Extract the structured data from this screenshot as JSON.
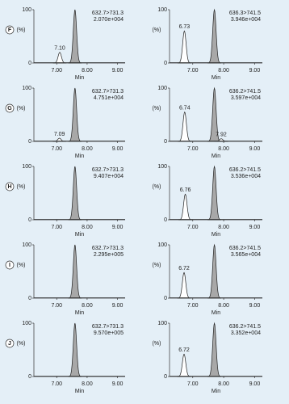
{
  "chart_data": [
    {
      "type": "chromatogram",
      "panel": "F",
      "trace": "632.7>731.3",
      "intensity": "2.070e+004",
      "xlabel": "Min",
      "ylabel": "(%)",
      "xlim": [
        6.25,
        9.25
      ],
      "ylim": [
        0,
        100
      ],
      "xticks": [
        {
          "value": 7,
          "label": "7.00"
        },
        {
          "value": 8,
          "label": "8.00"
        },
        {
          "value": 9,
          "label": "9.00"
        }
      ],
      "yticks": [
        0,
        100
      ],
      "peaks": {
        "x": [
          7.1,
          7.6
        ],
        "values": [
          20,
          100
        ],
        "labels": [
          "7.10",
          null
        ],
        "colors": [
          "#ffffff",
          "#a8a8a8"
        ]
      }
    },
    {
      "type": "chromatogram",
      "trace": "636.3>741.5",
      "intensity": "3.946e+004",
      "xlabel": "Min",
      "ylabel": "(%)",
      "xlim": [
        6.25,
        9.25
      ],
      "ylim": [
        0,
        100
      ],
      "xticks": [
        {
          "value": 7,
          "label": "7.00"
        },
        {
          "value": 8,
          "label": "8.00"
        },
        {
          "value": 9,
          "label": "9.00"
        }
      ],
      "yticks": [
        0,
        100
      ],
      "peaks": {
        "x": [
          6.73,
          7.7
        ],
        "values": [
          60,
          100
        ],
        "labels": [
          "6.73",
          null
        ],
        "colors": [
          "#ffffff",
          "#a8a8a8"
        ]
      }
    },
    {
      "type": "chromatogram",
      "panel": "G",
      "trace": "632.7>731.3",
      "intensity": "4.751e+004",
      "xlabel": "Min",
      "ylabel": "(%)",
      "xlim": [
        6.25,
        9.25
      ],
      "ylim": [
        0,
        100
      ],
      "xticks": [
        {
          "value": 7,
          "label": "7.00"
        },
        {
          "value": 8,
          "label": "8.00"
        },
        {
          "value": 9,
          "label": "9.00"
        }
      ],
      "yticks": [
        0,
        100
      ],
      "peaks": {
        "x": [
          7.09,
          7.6
        ],
        "values": [
          6,
          100
        ],
        "labels": [
          "7.09",
          null
        ],
        "colors": [
          "#ffffff",
          "#a8a8a8"
        ]
      }
    },
    {
      "type": "chromatogram",
      "trace": "636.2>741.5",
      "intensity": "3.597e+004",
      "xlabel": "Min",
      "ylabel": "(%)",
      "xlim": [
        6.25,
        9.25
      ],
      "ylim": [
        0,
        100
      ],
      "xticks": [
        {
          "value": 7,
          "label": "7.00"
        },
        {
          "value": 8,
          "label": "8.00"
        },
        {
          "value": 9,
          "label": "9.00"
        }
      ],
      "yticks": [
        0,
        100
      ],
      "peaks": {
        "x": [
          6.74,
          7.7,
          7.92
        ],
        "values": [
          55,
          100,
          5
        ],
        "labels": [
          "6.74",
          null,
          "7.92"
        ],
        "colors": [
          "#ffffff",
          "#a8a8a8",
          "#ffffff"
        ]
      }
    },
    {
      "type": "chromatogram",
      "panel": "H",
      "trace": "632.7>731.3",
      "intensity": "9.407e+004",
      "xlabel": "Min",
      "ylabel": "(%)",
      "xlim": [
        6.25,
        9.25
      ],
      "ylim": [
        0,
        100
      ],
      "xticks": [
        {
          "value": 7,
          "label": "7.00"
        },
        {
          "value": 8,
          "label": "8.00"
        },
        {
          "value": 9,
          "label": "9.00"
        }
      ],
      "yticks": [
        0,
        100
      ],
      "peaks": {
        "x": [
          7.6
        ],
        "values": [
          100
        ],
        "labels": [
          null
        ],
        "colors": [
          "#a8a8a8"
        ]
      }
    },
    {
      "type": "chromatogram",
      "trace": "636.2>741.5",
      "intensity": "3.536e+004",
      "xlabel": "Min",
      "ylabel": "(%)",
      "xlim": [
        6.25,
        9.25
      ],
      "ylim": [
        0,
        100
      ],
      "xticks": [
        {
          "value": 7,
          "label": "7.00"
        },
        {
          "value": 8,
          "label": "8.00"
        },
        {
          "value": 9,
          "label": "9.00"
        }
      ],
      "yticks": [
        0,
        100
      ],
      "peaks": {
        "x": [
          6.76,
          7.7
        ],
        "values": [
          48,
          100
        ],
        "labels": [
          "6.76",
          null
        ],
        "colors": [
          "#ffffff",
          "#a8a8a8"
        ]
      }
    },
    {
      "type": "chromatogram",
      "panel": "I",
      "trace": "632.7>731.3",
      "intensity": "2.295e+005",
      "xlabel": "Min",
      "ylabel": "(%)",
      "xlim": [
        6.25,
        9.25
      ],
      "ylim": [
        0,
        100
      ],
      "xticks": [
        {
          "value": 7,
          "label": "7.00"
        },
        {
          "value": 8,
          "label": "8.00"
        },
        {
          "value": 9,
          "label": "9.00"
        }
      ],
      "yticks": [
        0,
        100
      ],
      "peaks": {
        "x": [
          7.6
        ],
        "values": [
          100
        ],
        "labels": [
          null
        ],
        "colors": [
          "#a8a8a8"
        ]
      }
    },
    {
      "type": "chromatogram",
      "trace": "636.2>741.5",
      "intensity": "3.565e+004",
      "xlabel": "Min",
      "ylabel": "(%)",
      "xlim": [
        6.25,
        9.25
      ],
      "ylim": [
        0,
        100
      ],
      "xticks": [
        {
          "value": 7,
          "label": "7.00"
        },
        {
          "value": 8,
          "label": "8.00"
        },
        {
          "value": 9,
          "label": "9.00"
        }
      ],
      "yticks": [
        0,
        100
      ],
      "peaks": {
        "x": [
          6.72,
          7.7
        ],
        "values": [
          48,
          100
        ],
        "labels": [
          "6.72",
          null
        ],
        "colors": [
          "#ffffff",
          "#a8a8a8"
        ]
      }
    },
    {
      "type": "chromatogram",
      "panel": "J",
      "trace": "632.7>731.3",
      "intensity": "9.570e+005",
      "xlabel": "Min",
      "ylabel": "(%)",
      "xlim": [
        6.25,
        9.25
      ],
      "ylim": [
        0,
        100
      ],
      "xticks": [
        {
          "value": 7,
          "label": "7.00"
        },
        {
          "value": 8,
          "label": "8.00"
        },
        {
          "value": 9,
          "label": "9.00"
        }
      ],
      "yticks": [
        0,
        100
      ],
      "peaks": {
        "x": [
          7.6
        ],
        "values": [
          100
        ],
        "labels": [
          null
        ],
        "colors": [
          "#a8a8a8"
        ]
      }
    },
    {
      "type": "chromatogram",
      "trace": "636.2>741.5",
      "intensity": "3.352e+004",
      "xlabel": "Min",
      "ylabel": "(%)",
      "xlim": [
        6.25,
        9.25
      ],
      "ylim": [
        0,
        100
      ],
      "xticks": [
        {
          "value": 7,
          "label": "7.00"
        },
        {
          "value": 8,
          "label": "8.00"
        },
        {
          "value": 9,
          "label": "9.00"
        }
      ],
      "yticks": [
        0,
        100
      ],
      "peaks": {
        "x": [
          6.72,
          7.7
        ],
        "values": [
          42,
          100
        ],
        "labels": [
          "6.72",
          null
        ],
        "colors": [
          "#ffffff",
          "#a8a8a8"
        ]
      }
    }
  ]
}
